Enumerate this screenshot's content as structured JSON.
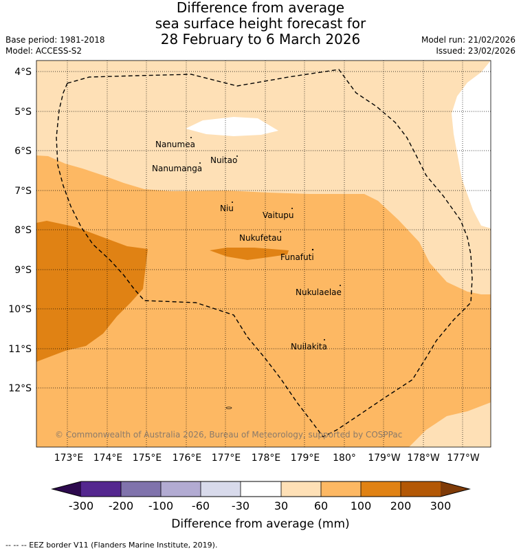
{
  "title": {
    "line1": "Difference from average",
    "line2": "sea surface height forecast for",
    "line3": "28 February to 6 March 2026"
  },
  "meta": {
    "base_period": "Base period: 1981-2018",
    "model": "Model: ACCESS-S2",
    "model_run": "Model run: 21/02/2026",
    "issued": "Issued: 23/02/2026"
  },
  "map": {
    "lat_labels": [
      "4°S",
      "5°S",
      "6°S",
      "7°S",
      "8°S",
      "9°S",
      "10°S",
      "11°S",
      "12°S"
    ],
    "lon_labels": [
      "173°E",
      "174°E",
      "175°E",
      "176°E",
      "177°E",
      "178°E",
      "179°E",
      "180°",
      "179°W",
      "178°W",
      "177°W"
    ],
    "places": [
      {
        "name": "Nanumea"
      },
      {
        "name": "Nuitao"
      },
      {
        "name": "Nanumanga"
      },
      {
        "name": "Niu"
      },
      {
        "name": "Vaitupu"
      },
      {
        "name": "Nukufetau"
      },
      {
        "name": "Funafuti"
      },
      {
        "name": "Nukulaelae"
      },
      {
        "name": "Nuilakita"
      }
    ],
    "copyright": "© Commonwealth of Australia 2026, Bureau of Meteorology, supported by COSPPac"
  },
  "colorbar": {
    "label": "Difference from average (mm)",
    "ticks": [
      "-300",
      "-200",
      "-100",
      "-60",
      "-30",
      "30",
      "60",
      "100",
      "200",
      "300"
    ],
    "colors": {
      "below_min": "#2d0a4e",
      "c1": "#54278f",
      "c2": "#8073ac",
      "c3": "#b2abd2",
      "c4": "#d8daeb",
      "c5": "#ffffff",
      "c6": "#fee0b6",
      "c7": "#fdb863",
      "c8": "#e08214",
      "c9": "#b35806",
      "above_max": "#7f3b08"
    }
  },
  "footer": "--  --  -- EEZ border V11 (Flanders Marine Institute, 2019)."
}
